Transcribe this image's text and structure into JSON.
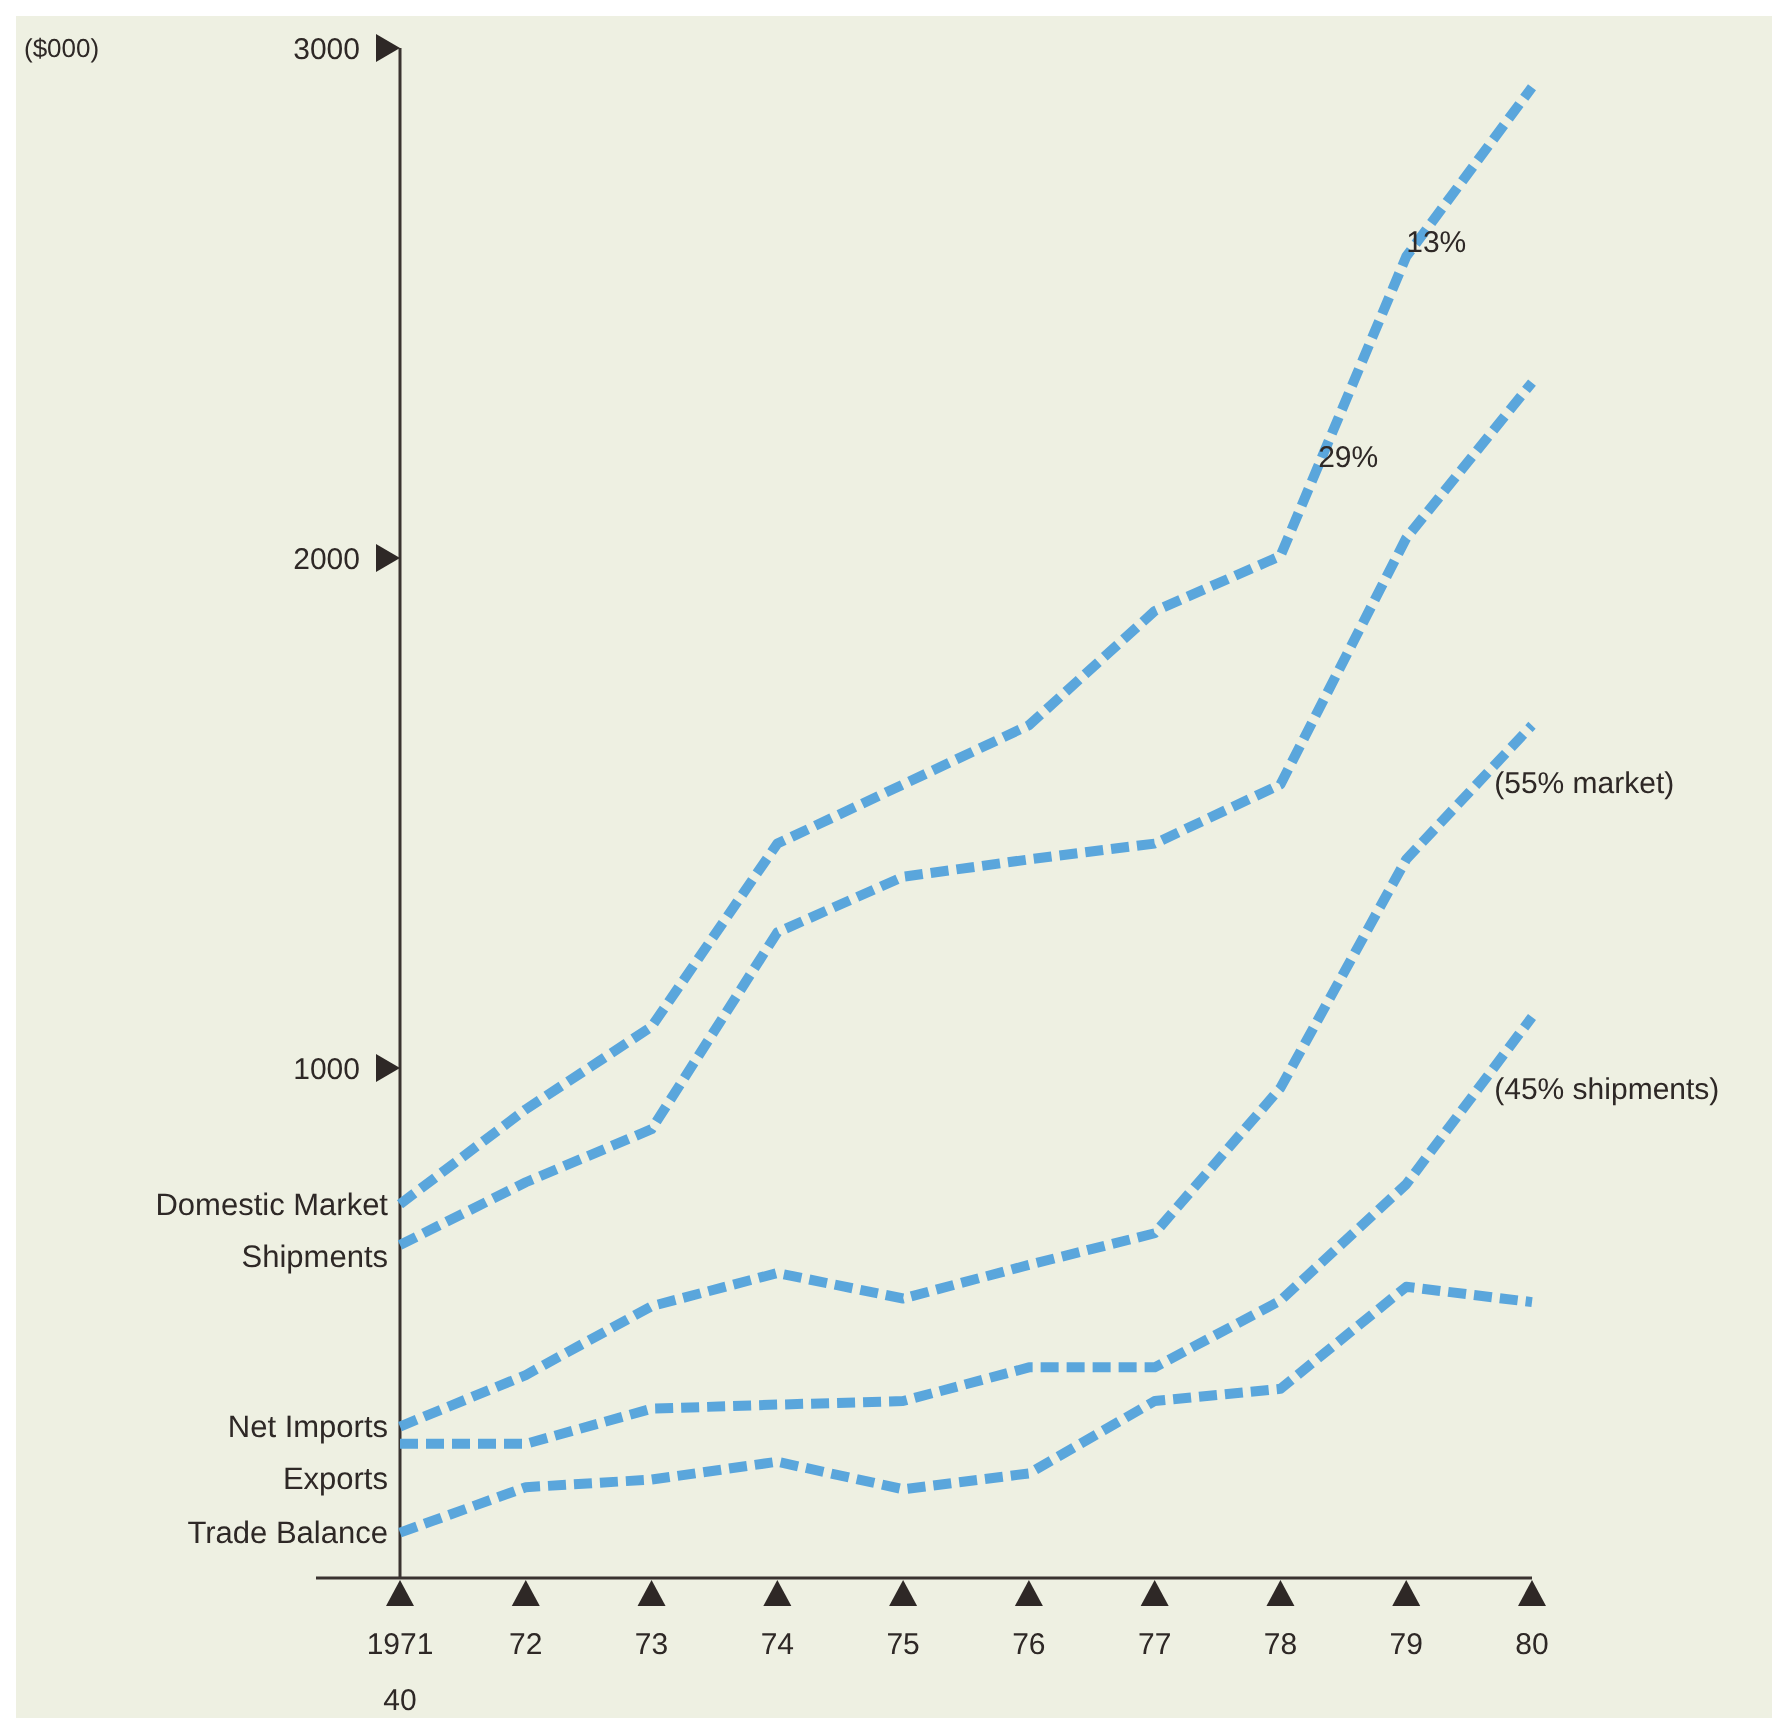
{
  "chart_data": {
    "type": "line",
    "x": [
      1971,
      1972,
      1973,
      1974,
      1975,
      1976,
      1977,
      1978,
      1979,
      1980
    ],
    "xlim": [
      1971,
      1980
    ],
    "xticks": [
      1971,
      {
        "value": 1972,
        "label": "72"
      },
      {
        "value": 1973,
        "label": "73"
      },
      {
        "value": 1974,
        "label": "74"
      },
      {
        "value": 1975,
        "label": "75"
      },
      {
        "value": 1976,
        "label": "76"
      },
      {
        "value": 1977,
        "label": "77"
      },
      {
        "value": 1978,
        "label": "78"
      },
      {
        "value": 1979,
        "label": "79"
      },
      {
        "value": 1980,
        "label": "80"
      }
    ],
    "ylim": [
      0,
      3000
    ],
    "yticks": [
      1000,
      2000,
      3000
    ],
    "grid": false,
    "legend": false,
    "marker": "none",
    "line_style": "dashed",
    "series": [
      {
        "name": "Domestic Market",
        "color": "#5aa6dc",
        "values": [
          733,
          919,
          1081,
          1440,
          1556,
          1672,
          1896,
          2004,
          2591,
          2923
        ]
      },
      {
        "name": "Shipments",
        "color": "#5aa6dc",
        "values": [
          653,
          776,
          880,
          1266,
          1375,
          1409,
          1440,
          1556,
          2039,
          2344
        ]
      },
      {
        "name": "Net Imports",
        "color": "#5aa6dc",
        "values": [
          297,
          398,
          533,
          598,
          548,
          614,
          676,
          961,
          1409,
          1672
        ]
      },
      {
        "name": "Exports",
        "color": "#5aa6dc",
        "values": [
          263,
          263,
          332,
          340,
          347,
          413,
          413,
          544,
          772,
          1100
        ]
      },
      {
        "name": "Trade Balance",
        "color": "#5aa6dc",
        "values": [
          89,
          178,
          193,
          228,
          174,
          205,
          347,
          371,
          571,
          541
        ]
      }
    ],
    "annotations": [
      {
        "text": "13%",
        "x": 1979.0,
        "y": 2620
      },
      {
        "text": "29%",
        "x": 1978.3,
        "y": 2200
      },
      {
        "text": "(55% market)",
        "x": 1979.7,
        "y": 1560
      },
      {
        "text": "(45% shipments)",
        "x": 1979.7,
        "y": 960
      },
      "($000)",
      "40"
    ]
  }
}
